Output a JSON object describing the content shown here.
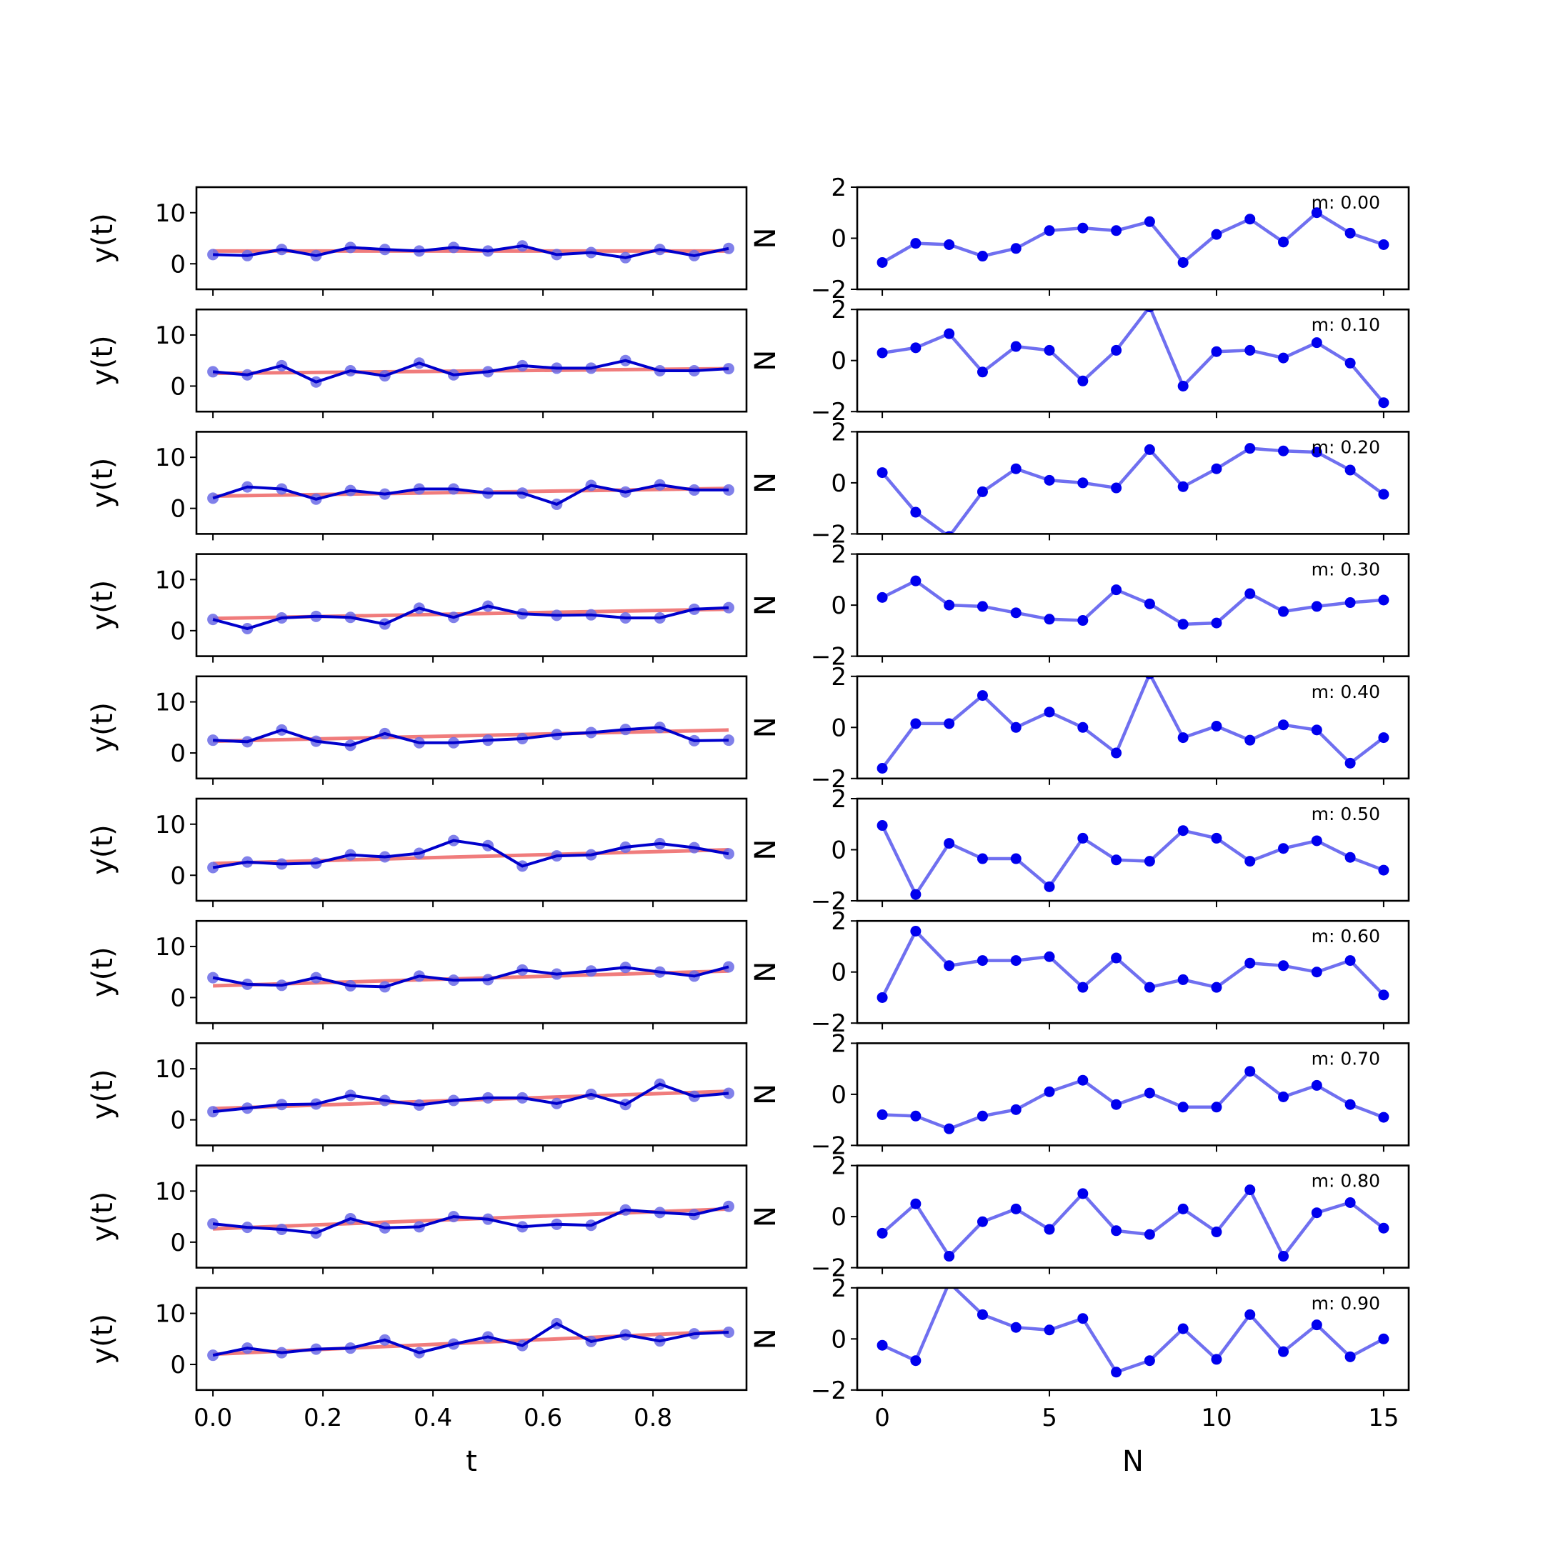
{
  "chart_data": {
    "type": "line",
    "layout": "10 rows x 2 columns of small-multiple line plots",
    "colors": {
      "observed": "#0000cc",
      "observed_markers": "#6a6ae6",
      "trend": "#f07c7c",
      "residual": "#6f6ff0",
      "residual_markers": "#0000ee"
    },
    "left_column": {
      "xlabel": "t",
      "ylabel": "y(t)",
      "xlim": [
        -0.03,
        0.97
      ],
      "ylim": [
        -5,
        15
      ],
      "xticks": [
        0.0,
        0.2,
        0.4,
        0.6,
        0.8
      ],
      "xtick_labels": [
        "0.0",
        "0.2",
        "0.4",
        "0.6",
        "0.8"
      ],
      "yticks": [
        0,
        10
      ],
      "ytick_labels": [
        "0",
        "10"
      ],
      "x": [
        0.0,
        0.0625,
        0.125,
        0.1875,
        0.25,
        0.3125,
        0.375,
        0.4375,
        0.5,
        0.5625,
        0.625,
        0.6875,
        0.75,
        0.8125,
        0.875,
        0.9375
      ],
      "panels": [
        {
          "trend": [
            2.5,
            2.5
          ],
          "y": [
            1.8,
            1.6,
            2.8,
            1.6,
            3.2,
            2.8,
            2.5,
            3.2,
            2.5,
            3.5,
            1.8,
            2.2,
            1.2,
            2.8,
            1.6,
            3.0
          ]
        },
        {
          "trend": [
            2.5,
            3.4
          ],
          "y": [
            2.8,
            2.2,
            4.0,
            0.8,
            3.0,
            2.0,
            4.5,
            2.2,
            2.8,
            4.0,
            3.5,
            3.5,
            5.0,
            3.0,
            3.0,
            3.4
          ]
        },
        {
          "trend": [
            2.4,
            3.9
          ],
          "y": [
            2.0,
            4.2,
            3.8,
            1.8,
            3.5,
            2.8,
            3.8,
            3.8,
            3.0,
            3.0,
            0.8,
            4.5,
            3.2,
            4.6,
            3.6,
            3.6
          ]
        },
        {
          "trend": [
            2.4,
            4.2
          ],
          "y": [
            2.2,
            0.4,
            2.5,
            2.8,
            2.6,
            1.3,
            4.4,
            2.6,
            4.8,
            3.3,
            3.0,
            3.1,
            2.5,
            2.5,
            4.2,
            4.5
          ]
        },
        {
          "trend": [
            2.3,
            4.5
          ],
          "y": [
            2.5,
            2.2,
            4.5,
            2.3,
            1.5,
            3.8,
            2.0,
            2.0,
            2.5,
            2.8,
            3.6,
            4.0,
            4.6,
            5.0,
            2.4,
            2.5
          ]
        },
        {
          "trend": [
            2.3,
            5.0
          ],
          "y": [
            1.5,
            2.6,
            2.2,
            2.4,
            4.0,
            3.6,
            4.3,
            6.8,
            5.8,
            1.8,
            3.8,
            4.0,
            5.5,
            6.2,
            5.4,
            4.2
          ]
        },
        {
          "trend": [
            2.3,
            5.2
          ],
          "y": [
            3.9,
            2.6,
            2.4,
            3.9,
            2.3,
            2.1,
            4.2,
            3.4,
            3.5,
            5.4,
            4.6,
            5.2,
            5.9,
            5.0,
            4.2,
            6.0
          ]
        },
        {
          "trend": [
            2.2,
            5.6
          ],
          "y": [
            1.6,
            2.3,
            3.0,
            3.1,
            4.8,
            3.8,
            2.9,
            3.8,
            4.3,
            4.3,
            3.2,
            5.0,
            3.0,
            7.0,
            4.6,
            5.2
          ]
        },
        {
          "trend": [
            2.6,
            6.5
          ],
          "y": [
            3.6,
            2.9,
            2.5,
            1.8,
            4.6,
            2.8,
            3.0,
            5.0,
            4.5,
            3.0,
            3.5,
            3.3,
            6.3,
            5.8,
            5.4,
            7.0
          ]
        },
        {
          "trend": [
            2.0,
            6.5
          ],
          "y": [
            1.8,
            3.2,
            2.3,
            3.0,
            3.2,
            4.8,
            2.3,
            4.0,
            5.4,
            3.7,
            8.0,
            4.5,
            5.8,
            4.6,
            6.0,
            6.3
          ]
        }
      ]
    },
    "right_column": {
      "xlabel": "N",
      "ylabel": "N",
      "xlim": [
        -0.75,
        15.75
      ],
      "ylim": [
        -2,
        2
      ],
      "xticks": [
        0,
        5,
        10,
        15
      ],
      "xtick_labels": [
        "0",
        "5",
        "10",
        "15"
      ],
      "yticks": [
        -2,
        0,
        2
      ],
      "ytick_labels": [
        "−2",
        "0",
        "2"
      ],
      "x": [
        0,
        1,
        2,
        3,
        4,
        5,
        6,
        7,
        8,
        9,
        10,
        11,
        12,
        13,
        14,
        15
      ],
      "panels": [
        {
          "label": "m: 0.00",
          "y": [
            -0.95,
            -0.2,
            -0.25,
            -0.7,
            -0.4,
            0.3,
            0.4,
            0.3,
            0.65,
            -0.95,
            0.15,
            0.75,
            -0.15,
            1.0,
            0.2,
            -0.25
          ]
        },
        {
          "label": "m: 0.10",
          "y": [
            0.3,
            0.5,
            1.05,
            -0.45,
            0.55,
            0.4,
            -0.8,
            0.4,
            2.1,
            -1.0,
            0.35,
            0.4,
            0.1,
            0.7,
            -0.1,
            -1.65
          ]
        },
        {
          "label": "m: 0.20",
          "y": [
            0.4,
            -1.15,
            -2.1,
            -0.35,
            0.55,
            0.1,
            0.0,
            -0.2,
            1.3,
            -0.15,
            0.55,
            1.35,
            1.25,
            1.2,
            0.5,
            -0.45
          ]
        },
        {
          "label": "m: 0.30",
          "y": [
            0.3,
            0.95,
            0.0,
            -0.05,
            -0.3,
            -0.55,
            -0.6,
            0.6,
            0.05,
            -0.75,
            -0.7,
            0.45,
            -0.25,
            -0.05,
            0.1,
            0.2
          ]
        },
        {
          "label": "m: 0.40",
          "y": [
            -1.6,
            0.15,
            0.15,
            1.25,
            0.0,
            0.6,
            0.0,
            -1.0,
            2.1,
            -0.4,
            0.05,
            -0.5,
            0.1,
            -0.1,
            -1.4,
            -0.4
          ]
        },
        {
          "label": "m: 0.50",
          "y": [
            0.95,
            -1.75,
            0.25,
            -0.35,
            -0.35,
            -1.45,
            0.45,
            -0.4,
            -0.45,
            0.75,
            0.45,
            -0.45,
            0.05,
            0.35,
            -0.3,
            -0.8
          ]
        },
        {
          "label": "m: 0.60",
          "y": [
            -1.0,
            1.6,
            0.25,
            0.45,
            0.45,
            0.6,
            -0.6,
            0.55,
            -0.6,
            -0.3,
            -0.6,
            0.35,
            0.25,
            0.0,
            0.45,
            -0.9
          ]
        },
        {
          "label": "m: 0.70",
          "y": [
            -0.8,
            -0.85,
            -1.35,
            -0.85,
            -0.6,
            0.1,
            0.55,
            -0.4,
            0.05,
            -0.5,
            -0.5,
            0.9,
            -0.1,
            0.35,
            -0.4,
            -0.9
          ]
        },
        {
          "label": "m: 0.80",
          "y": [
            -0.65,
            0.5,
            -1.55,
            -0.2,
            0.3,
            -0.5,
            0.9,
            -0.55,
            -0.7,
            0.3,
            -0.6,
            1.05,
            -1.55,
            0.15,
            0.55,
            -0.45
          ]
        },
        {
          "label": "m: 0.90",
          "y": [
            -0.25,
            -0.85,
            2.2,
            0.95,
            0.45,
            0.35,
            0.8,
            -1.3,
            -0.85,
            0.4,
            -0.8,
            0.95,
            -0.5,
            0.55,
            -0.7,
            0.0
          ]
        }
      ]
    }
  }
}
